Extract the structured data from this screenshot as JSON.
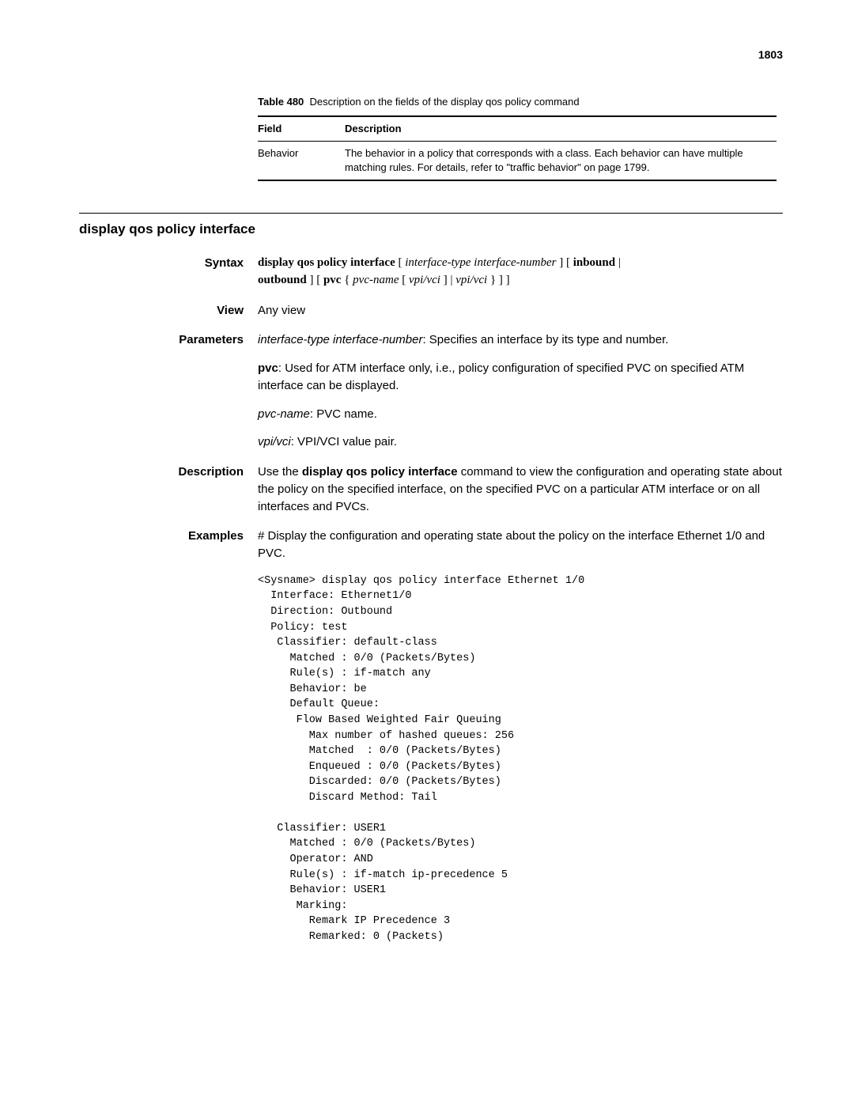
{
  "page_number": "1803",
  "table": {
    "caption_label": "Table 480",
    "caption_text": "Description on the fields of the display qos policy command",
    "headers": {
      "field": "Field",
      "description": "Description"
    },
    "row": {
      "field": "Behavior",
      "description": "The behavior in a policy that corresponds with a class. Each behavior can have multiple matching rules. For details, refer to \"traffic behavior\" on page 1799."
    }
  },
  "section_title": "display qos policy interface",
  "syntax": {
    "label": "Syntax",
    "line1_bold1": "display qos policy interface",
    "line1_italic1": "interface-type interface-number",
    "line1_bold2": "inbound",
    "line2_bold1": "outbound",
    "line2_bold2": "pvc",
    "line2_italic1": "pvc-name",
    "line2_italic2": "vpi/vci",
    "line2_italic3": "vpi/vci"
  },
  "view": {
    "label": "View",
    "text": "Any view"
  },
  "parameters": {
    "label": "Parameters",
    "p1_italic": "interface-type interface-number",
    "p1_rest": ": Specifies an interface by its type and number.",
    "p2_bold": "pvc",
    "p2_rest": ": Used for ATM interface only, i.e., policy configuration of specified PVC on specified ATM interface can be displayed.",
    "p3_italic": "pvc-name",
    "p3_rest": ": PVC name.",
    "p4_italic": "vpi/vci",
    "p4_rest": ": VPI/VCI value pair."
  },
  "description": {
    "label": "Description",
    "pre": "Use the ",
    "bold": "display qos policy interface",
    "post": " command to view the configuration and operating state about the policy on the specified interface, on the specified PVC on a particular ATM interface or on all interfaces and PVCs."
  },
  "examples": {
    "label": "Examples",
    "intro": "# Display the configuration and operating state about the policy on the interface Ethernet 1/0 and PVC.",
    "code": "<Sysname> display qos policy interface Ethernet 1/0\n  Interface: Ethernet1/0\n  Direction: Outbound\n  Policy: test\n   Classifier: default-class\n     Matched : 0/0 (Packets/Bytes)\n     Rule(s) : if-match any\n     Behavior: be\n     Default Queue:\n      Flow Based Weighted Fair Queuing\n        Max number of hashed queues: 256\n        Matched  : 0/0 (Packets/Bytes)\n        Enqueued : 0/0 (Packets/Bytes)\n        Discarded: 0/0 (Packets/Bytes)\n        Discard Method: Tail\n\n   Classifier: USER1\n     Matched : 0/0 (Packets/Bytes)\n     Operator: AND\n     Rule(s) : if-match ip-precedence 5\n     Behavior: USER1\n      Marking:\n        Remark IP Precedence 3\n        Remarked: 0 (Packets)"
  }
}
